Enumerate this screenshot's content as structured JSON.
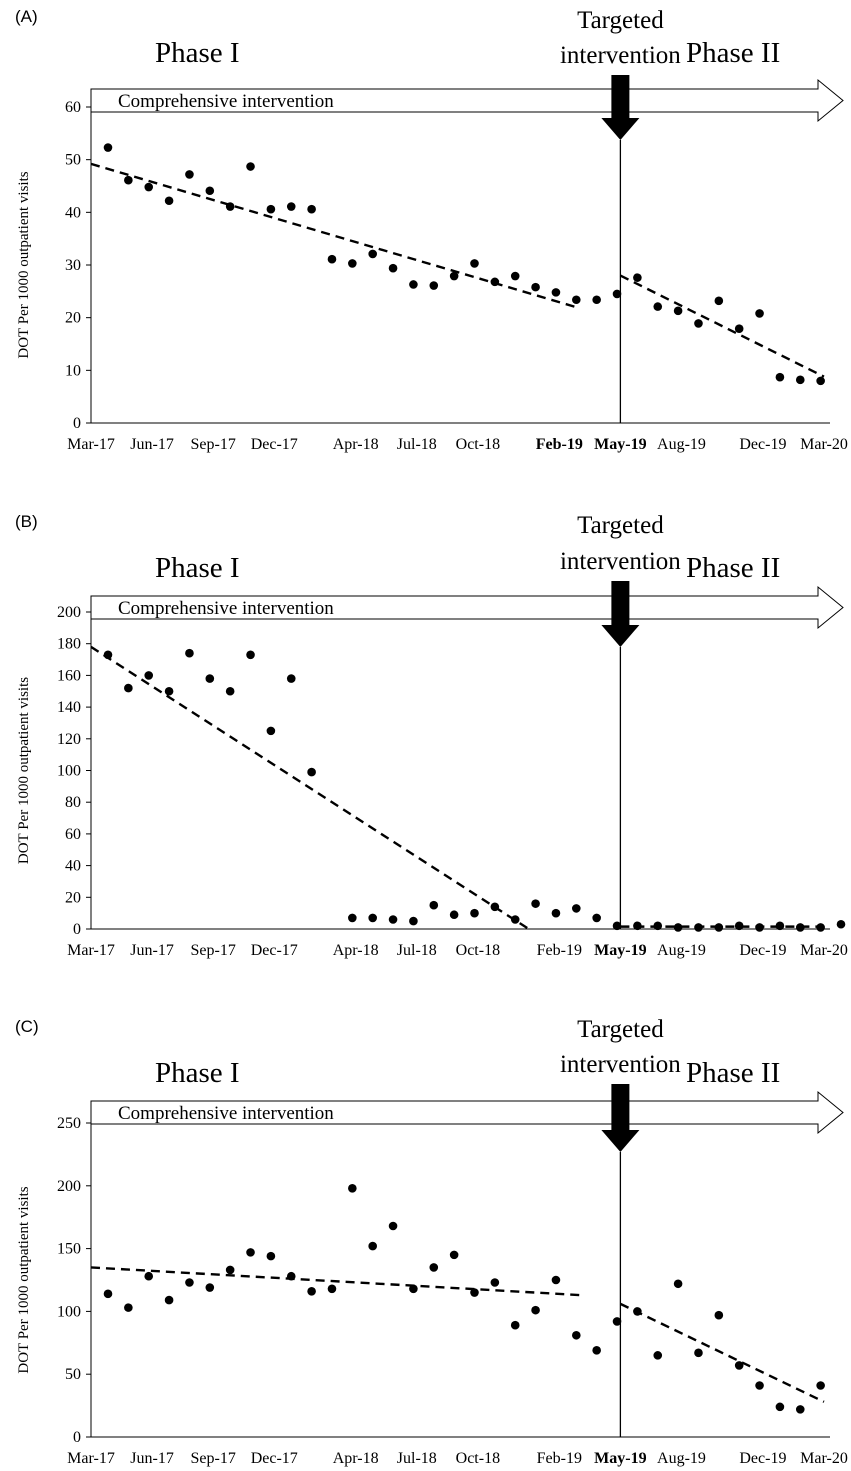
{
  "charts": [
    {
      "panel": "(A)",
      "phase1_label": "Phase I",
      "phase2_label": "Phase II",
      "arrow_label": "Comprehensive intervention",
      "targeted_label": [
        "Targeted",
        "intervention"
      ],
      "ylabel": "DOT Per 1000 outpatient visits",
      "bold_ticks": [
        "Feb-19",
        "May-19"
      ]
    },
    {
      "panel": "(B)",
      "phase1_label": "Phase I",
      "phase2_label": "Phase II",
      "arrow_label": "Comprehensive intervention",
      "targeted_label": [
        "Targeted",
        "intervention"
      ],
      "ylabel": "DOT Per 1000 outpatient visits",
      "bold_ticks": [
        "May-19"
      ]
    },
    {
      "panel": "(C)",
      "phase1_label": "Phase I",
      "phase2_label": "Phase II",
      "arrow_label": "Comprehensive intervention",
      "targeted_label": [
        "Targeted",
        "intervention"
      ],
      "ylabel": "DOT Per 1000 outpatient visits",
      "bold_ticks": [
        "May-19"
      ]
    }
  ],
  "chart_data": [
    {
      "type": "scatter",
      "title": "",
      "xlabel": "",
      "ylabel": "DOT Per 1000 outpatient visits",
      "x_tick_labels": [
        "Mar-17",
        "Jun-17",
        "Sep-17",
        "Dec-17",
        "Apr-18",
        "Jul-18",
        "Oct-18",
        "Feb-19",
        "May-19",
        "Aug-19",
        "Dec-19",
        "Mar-20"
      ],
      "ylim": [
        0,
        60
      ],
      "yticks": [
        0,
        10,
        20,
        30,
        40,
        50,
        60
      ],
      "intervention_month": 26,
      "points": [
        [
          0,
          52.3
        ],
        [
          1,
          46.1
        ],
        [
          2,
          44.8
        ],
        [
          3,
          42.2
        ],
        [
          4,
          47.2
        ],
        [
          5,
          44.1
        ],
        [
          6,
          41.1
        ],
        [
          7,
          48.7
        ],
        [
          8,
          40.6
        ],
        [
          9,
          41.1
        ],
        [
          10,
          40.6
        ],
        [
          11,
          31.1
        ],
        [
          12,
          30.3
        ],
        [
          13,
          32.1
        ],
        [
          14,
          29.4
        ],
        [
          15,
          26.3
        ],
        [
          16,
          26.1
        ],
        [
          17,
          27.9
        ],
        [
          18,
          30.3
        ],
        [
          19,
          26.8
        ],
        [
          20,
          27.9
        ],
        [
          21,
          25.8
        ],
        [
          22,
          24.8
        ],
        [
          23,
          23.4
        ],
        [
          24,
          23.4
        ],
        [
          25,
          24.5
        ],
        [
          26,
          27.6
        ],
        [
          27,
          22.1
        ],
        [
          28,
          21.3
        ],
        [
          29,
          18.9
        ],
        [
          30,
          23.2
        ],
        [
          31,
          17.9
        ],
        [
          32,
          20.8
        ],
        [
          33,
          8.7
        ],
        [
          34,
          8.2
        ],
        [
          35,
          8.0
        ]
      ],
      "trend_lines": [
        {
          "x": [
            0,
            24
          ],
          "y": [
            49.2,
            21.8
          ]
        },
        {
          "x": [
            26,
            36
          ],
          "y": [
            28.0,
            8.8
          ]
        }
      ],
      "grid": false,
      "legend": "none"
    },
    {
      "type": "scatter",
      "title": "",
      "xlabel": "",
      "ylabel": "DOT Per 1000 outpatient visits",
      "x_tick_labels": [
        "Mar-17",
        "Jun-17",
        "Sep-17",
        "Dec-17",
        "Apr-18",
        "Jul-18",
        "Oct-18",
        "Feb-19",
        "May-19",
        "Aug-19",
        "Dec-19",
        "Mar-20"
      ],
      "ylim": [
        0,
        200
      ],
      "yticks": [
        0,
        20,
        40,
        60,
        80,
        100,
        120,
        140,
        160,
        180,
        200
      ],
      "intervention_month": 26,
      "points": [
        [
          0,
          173
        ],
        [
          1,
          152
        ],
        [
          2,
          160
        ],
        [
          3,
          150
        ],
        [
          4,
          174
        ],
        [
          5,
          158
        ],
        [
          6,
          150
        ],
        [
          7,
          173
        ],
        [
          8,
          125
        ],
        [
          9,
          158
        ],
        [
          10,
          99
        ],
        [
          12,
          7
        ],
        [
          13,
          7
        ],
        [
          14,
          6
        ],
        [
          15,
          5
        ],
        [
          16,
          15
        ],
        [
          17,
          9
        ],
        [
          18,
          10
        ],
        [
          19,
          14
        ],
        [
          20,
          6
        ],
        [
          21,
          16
        ],
        [
          22,
          10
        ],
        [
          23,
          13
        ],
        [
          24,
          7
        ],
        [
          25,
          2
        ],
        [
          26,
          2
        ],
        [
          27,
          2
        ],
        [
          28,
          1
        ],
        [
          29,
          1
        ],
        [
          30,
          1
        ],
        [
          31,
          2
        ],
        [
          32,
          1
        ],
        [
          33,
          2
        ],
        [
          34,
          1
        ],
        [
          35,
          1
        ],
        [
          36,
          3
        ]
      ],
      "trend_lines": [
        {
          "x": [
            0,
            21.5
          ],
          "y": [
            178,
            0
          ]
        },
        {
          "x": [
            26,
            36
          ],
          "y": [
            1.5,
            1.5
          ]
        }
      ],
      "grid": false,
      "legend": "none"
    },
    {
      "type": "scatter",
      "title": "",
      "xlabel": "",
      "ylabel": "DOT Per 1000 outpatient visits",
      "x_tick_labels": [
        "Mar-17",
        "Jun-17",
        "Sep-17",
        "Dec-17",
        "Apr-18",
        "Jul-18",
        "Oct-18",
        "Feb-19",
        "May-19",
        "Aug-19",
        "Dec-19",
        "Mar-20"
      ],
      "ylim": [
        0,
        250
      ],
      "yticks": [
        0,
        50,
        100,
        150,
        200,
        250
      ],
      "intervention_month": 26,
      "points": [
        [
          0,
          114
        ],
        [
          1,
          103
        ],
        [
          2,
          128
        ],
        [
          3,
          109
        ],
        [
          4,
          123
        ],
        [
          5,
          119
        ],
        [
          6,
          133
        ],
        [
          7,
          147
        ],
        [
          8,
          144
        ],
        [
          9,
          128
        ],
        [
          10,
          116
        ],
        [
          11,
          118
        ],
        [
          12,
          198
        ],
        [
          13,
          152
        ],
        [
          14,
          168
        ],
        [
          15,
          118
        ],
        [
          16,
          135
        ],
        [
          17,
          145
        ],
        [
          18,
          115
        ],
        [
          19,
          123
        ],
        [
          20,
          89
        ],
        [
          21,
          101
        ],
        [
          22,
          125
        ],
        [
          23,
          81
        ],
        [
          24,
          69
        ],
        [
          25,
          92
        ],
        [
          26,
          100
        ],
        [
          27,
          65
        ],
        [
          28,
          122
        ],
        [
          29,
          67
        ],
        [
          30,
          97
        ],
        [
          31,
          57
        ],
        [
          32,
          41
        ],
        [
          33,
          24
        ],
        [
          34,
          22
        ],
        [
          35,
          41
        ]
      ],
      "trend_lines": [
        {
          "x": [
            0,
            24
          ],
          "y": [
            135,
            113
          ]
        },
        {
          "x": [
            26,
            36
          ],
          "y": [
            106,
            28
          ]
        }
      ],
      "grid": false,
      "legend": "none"
    }
  ]
}
